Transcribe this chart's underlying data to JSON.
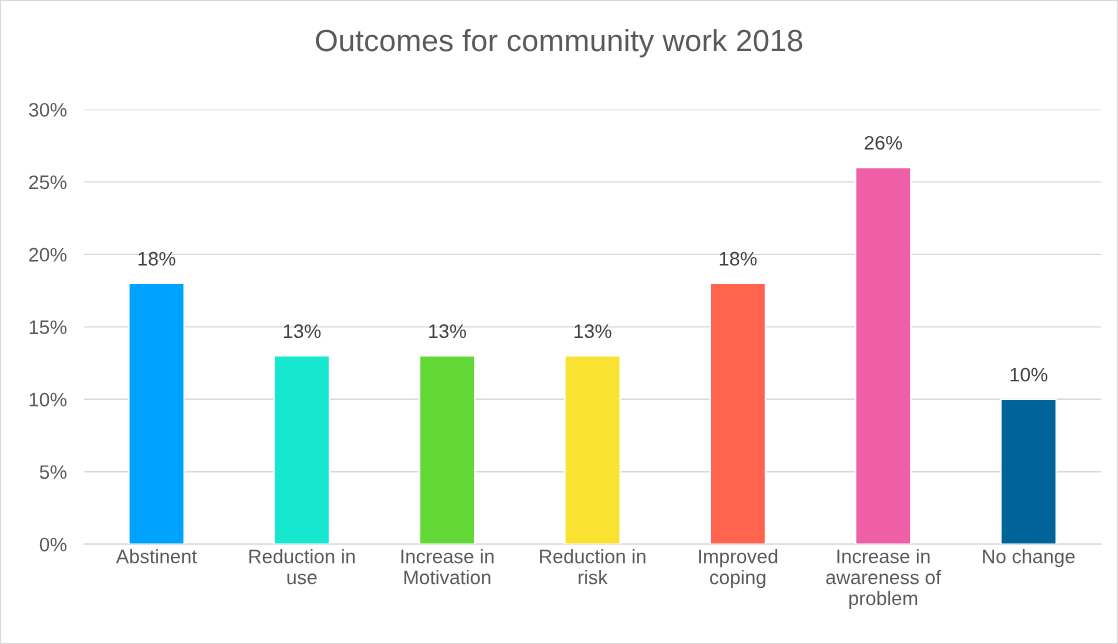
{
  "chart_data": {
    "type": "bar",
    "title": "Outcomes for community work 2018",
    "categories": [
      "Abstinent",
      "Reduction in\nuse",
      "Increase in\nMotivation",
      "Reduction in\nrisk",
      "Improved\ncoping",
      "Increase in\nawareness of\nproblem",
      "No change"
    ],
    "values": [
      18,
      13,
      13,
      13,
      18,
      26,
      10
    ],
    "value_labels": [
      "18%",
      "13%",
      "13%",
      "13%",
      "18%",
      "26%",
      "10%"
    ],
    "colors": [
      "#00a2ff",
      "#16e7cf",
      "#61d836",
      "#fae232",
      "#ff644e",
      "#ef5fa7",
      "#00639a"
    ],
    "ylim": [
      0,
      30
    ],
    "yticks": [
      {
        "value": 0,
        "label": "0%"
      },
      {
        "value": 5,
        "label": "5%"
      },
      {
        "value": 10,
        "label": "10%"
      },
      {
        "value": 15,
        "label": "15%"
      },
      {
        "value": 20,
        "label": "20%"
      },
      {
        "value": 25,
        "label": "25%"
      },
      {
        "value": 30,
        "label": "30%"
      }
    ],
    "grid": "y",
    "legend": false
  }
}
